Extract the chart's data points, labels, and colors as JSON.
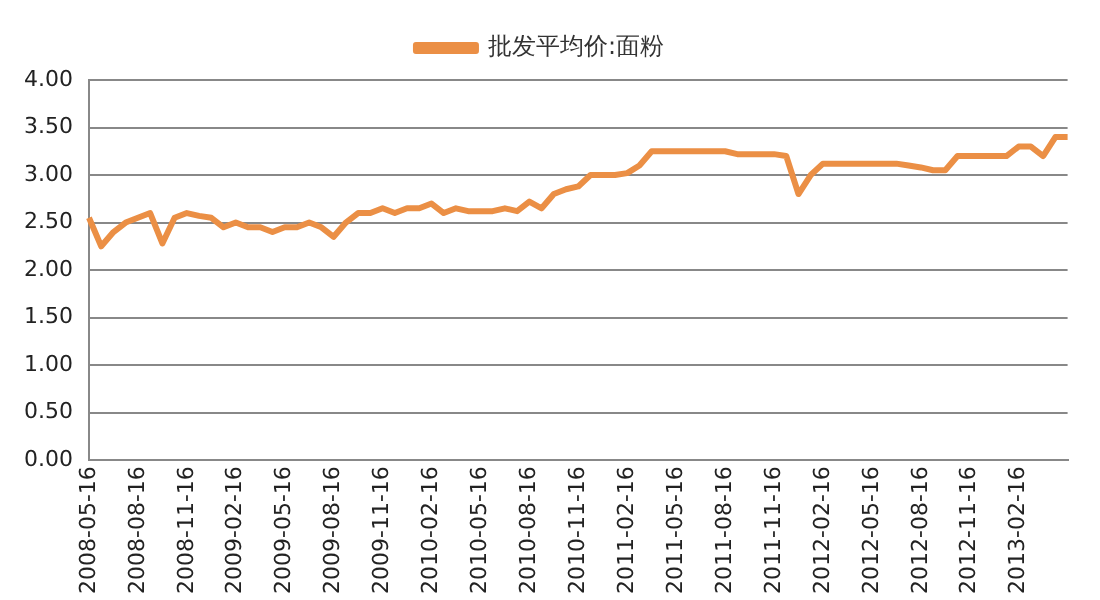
{
  "chart_data": {
    "type": "line",
    "categories": [
      "2008-05-16",
      null,
      null,
      null,
      "2008-08-16",
      null,
      null,
      null,
      "2008-11-16",
      null,
      null,
      null,
      "2009-02-16",
      null,
      null,
      null,
      "2009-05-16",
      null,
      null,
      null,
      "2009-08-16",
      null,
      null,
      null,
      "2009-11-16",
      null,
      null,
      null,
      "2010-02-16",
      null,
      null,
      null,
      "2010-05-16",
      null,
      null,
      null,
      "2010-08-16",
      null,
      null,
      null,
      "2010-11-16",
      null,
      null,
      null,
      "2011-02-16",
      null,
      null,
      null,
      "2011-05-16",
      null,
      null,
      null,
      "2011-08-16",
      null,
      null,
      null,
      "2011-11-16",
      null,
      null,
      null,
      "2012-02-16",
      null,
      null,
      null,
      "2012-05-16",
      null,
      null,
      null,
      "2012-08-16",
      null,
      null,
      null,
      "2012-11-16",
      null,
      null,
      null,
      "2013-02-16",
      null,
      null,
      null,
      null
    ],
    "series": [
      {
        "name": "批发平均价:面粉",
        "color": "#eb8f45",
        "values": [
          2.55,
          2.25,
          2.4,
          2.5,
          2.55,
          2.6,
          2.28,
          2.55,
          2.6,
          2.57,
          2.55,
          2.45,
          2.5,
          2.45,
          2.45,
          2.4,
          2.45,
          2.45,
          2.5,
          2.45,
          2.35,
          2.5,
          2.6,
          2.6,
          2.65,
          2.6,
          2.65,
          2.65,
          2.7,
          2.6,
          2.65,
          2.62,
          2.62,
          2.62,
          2.65,
          2.62,
          2.72,
          2.65,
          2.8,
          2.85,
          2.88,
          3.0,
          3.0,
          3.0,
          3.02,
          3.1,
          3.25,
          3.25,
          3.25,
          3.25,
          3.25,
          3.25,
          3.25,
          3.22,
          3.22,
          3.22,
          3.22,
          3.2,
          2.8,
          3.0,
          3.12,
          3.12,
          3.12,
          3.12,
          3.12,
          3.12,
          3.12,
          3.1,
          3.08,
          3.05,
          3.05,
          3.2,
          3.2,
          3.2,
          3.2,
          3.2,
          3.3,
          3.3,
          3.2,
          3.4,
          3.4
        ]
      }
    ],
    "ylim": [
      0,
      4
    ],
    "yticks": [
      {
        "value": 0,
        "label": "0.00"
      },
      {
        "value": 0.5,
        "label": "0.50"
      },
      {
        "value": 1,
        "label": "1.00"
      },
      {
        "value": 1.5,
        "label": "1.50"
      },
      {
        "value": 2,
        "label": "2.00"
      },
      {
        "value": 2.5,
        "label": "2.50"
      },
      {
        "value": 3,
        "label": "3.00"
      },
      {
        "value": 3.5,
        "label": "3.50"
      },
      {
        "value": 4,
        "label": "4.00"
      }
    ],
    "grid": "y",
    "legend": "top",
    "marker": "none",
    "line_style": "solid"
  }
}
